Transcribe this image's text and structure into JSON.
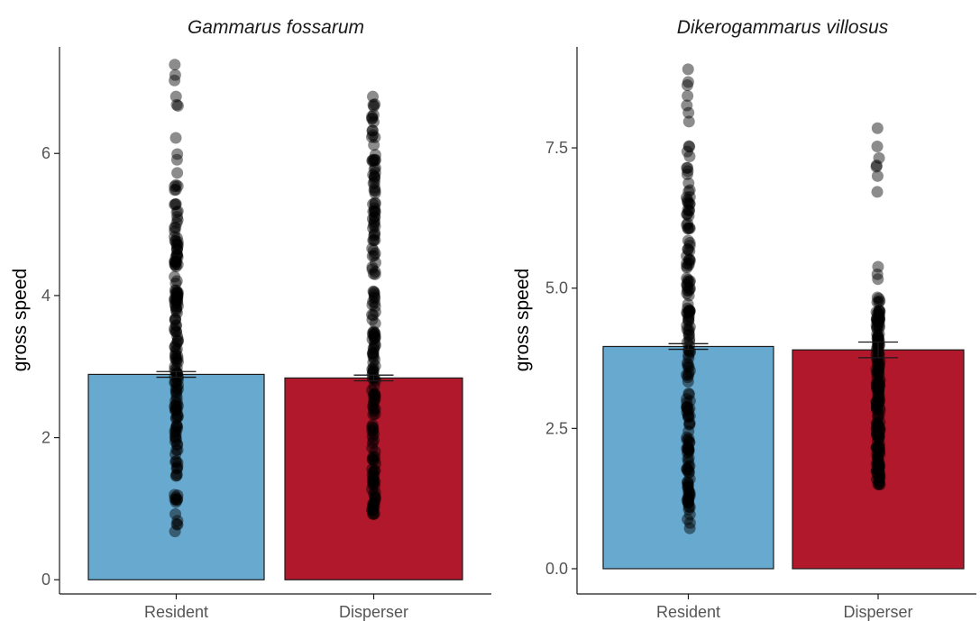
{
  "chart_data": [
    {
      "type": "bar",
      "title": "Gammarus fossarum",
      "xlabel": "",
      "ylabel": "gross speed",
      "categories": [
        "Resident",
        "Disperser"
      ],
      "values": [
        2.89,
        2.84
      ],
      "error": [
        [
          2.85,
          2.93
        ],
        [
          2.8,
          2.88
        ]
      ],
      "colors": [
        "#67a9cf",
        "#b2182b"
      ],
      "ylim": [
        -0.2,
        7.5
      ],
      "yticks": [
        0,
        2,
        4,
        6
      ],
      "ytick_labels": [
        "0",
        "2",
        "4",
        "6"
      ],
      "grid": false,
      "points": [
        {
          "category": "Resident",
          "min": 0.68,
          "max": 7.25,
          "dense_min": 1.1,
          "dense_max": 5.3
        },
        {
          "category": "Disperser",
          "min": 0.92,
          "max": 6.8,
          "dense_min": 1.0,
          "dense_max": 6.1
        }
      ]
    },
    {
      "type": "bar",
      "title": "Dikerogammarus villosus",
      "xlabel": "",
      "ylabel": "gross speed",
      "categories": [
        "Resident",
        "Disperser"
      ],
      "values": [
        3.96,
        3.9
      ],
      "error": [
        [
          3.91,
          4.01
        ],
        [
          3.76,
          4.04
        ]
      ],
      "colors": [
        "#67a9cf",
        "#b2182b"
      ],
      "ylim": [
        -0.45,
        9.3
      ],
      "yticks": [
        0.0,
        2.5,
        5.0,
        7.5
      ],
      "ytick_labels": [
        "0.0",
        "2.5",
        "5.0",
        "7.5"
      ],
      "grid": false,
      "points": [
        {
          "category": "Resident",
          "min": 0.72,
          "max": 8.9,
          "dense_min": 1.1,
          "dense_max": 7.0
        },
        {
          "category": "Disperser",
          "min": 1.5,
          "max": 7.85,
          "dense_min": 1.6,
          "dense_max": 4.7
        }
      ]
    }
  ]
}
